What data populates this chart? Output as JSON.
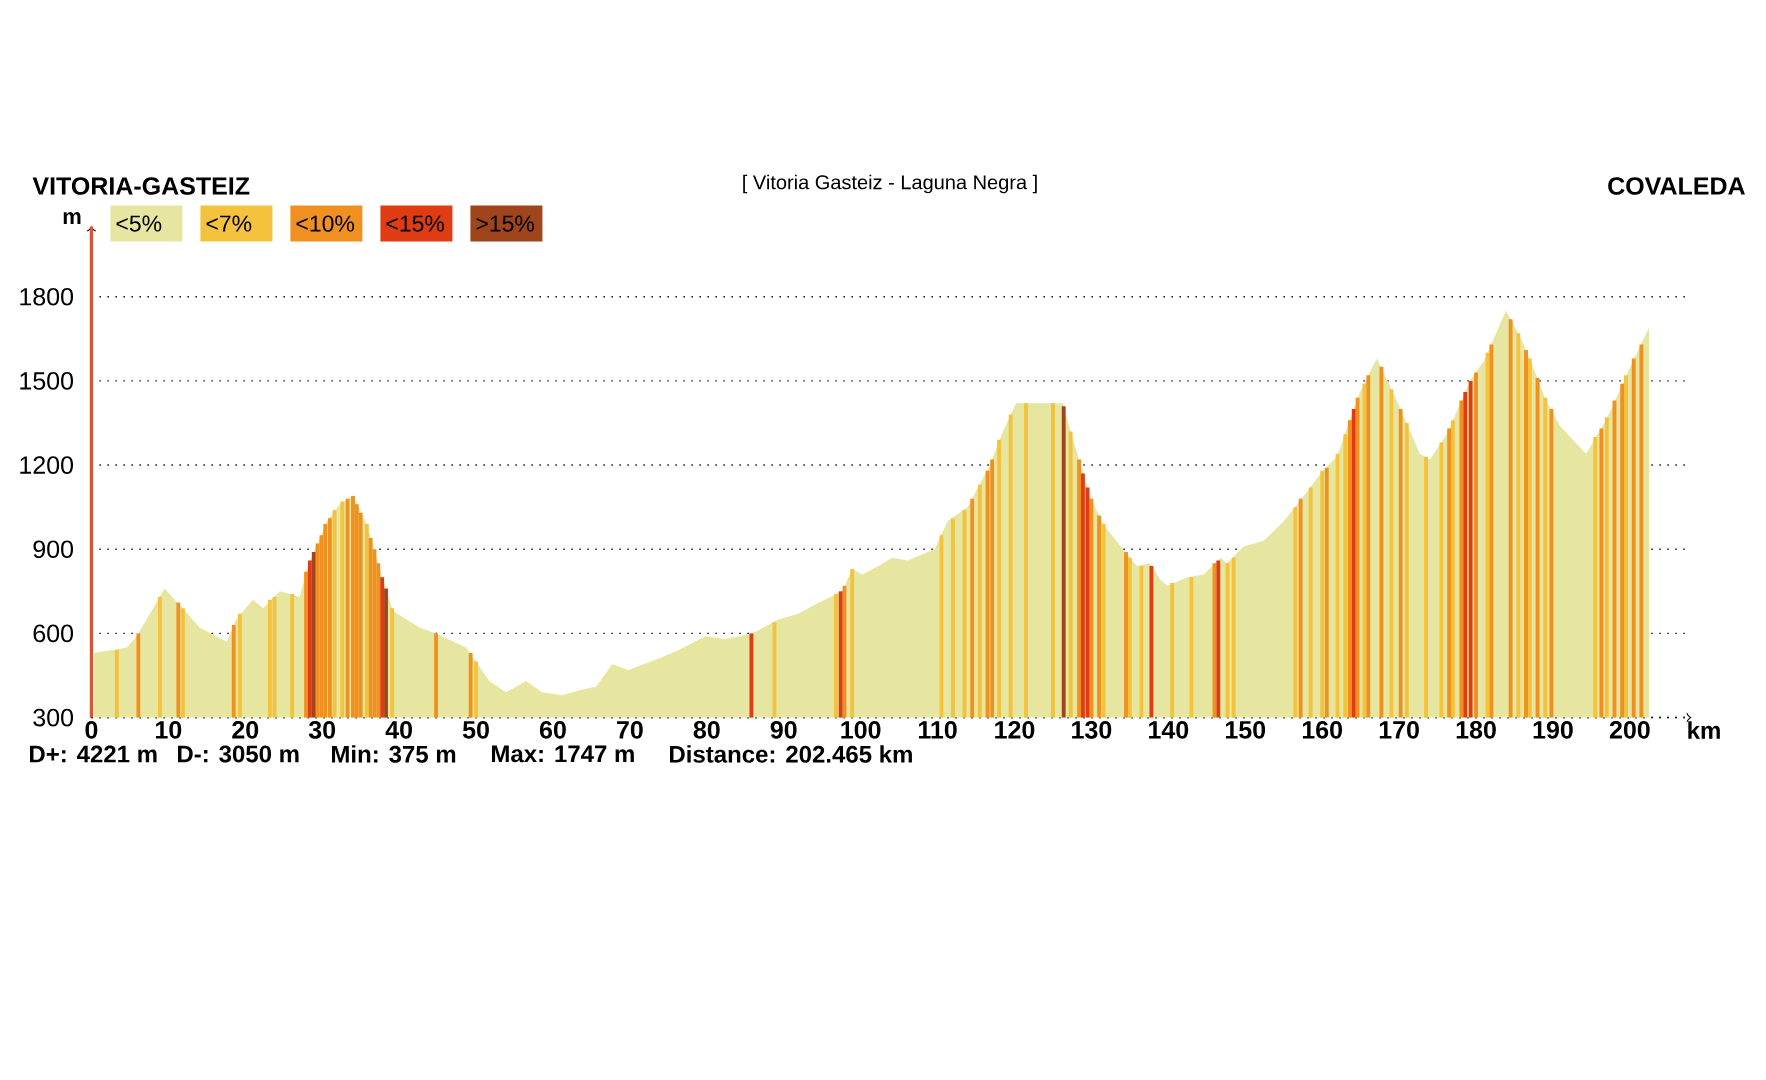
{
  "chart_data": {
    "type": "area",
    "title": "[ Vitoria Gasteiz - Laguna Negra ]",
    "xlabel": "km",
    "ylabel": "m",
    "xlim": [
      0,
      208
    ],
    "ylim": [
      300,
      2050
    ],
    "xticks": [
      0,
      10,
      20,
      30,
      40,
      50,
      60,
      70,
      80,
      90,
      100,
      110,
      120,
      130,
      140,
      150,
      160,
      170,
      180,
      190,
      200
    ],
    "yticks": [
      300,
      600,
      900,
      1200,
      1500,
      1800
    ],
    "grid": "y",
    "legend": "top left",
    "series": [
      {
        "name": "<5%",
        "color": "#e6e6a0",
        "x": [
          0.3,
          4.6,
          5.9,
          9.5,
          11.5,
          14.1,
          17.6,
          18.8,
          21.0,
          22.3,
          24.5,
          27.1,
          28.0,
          30.6,
          32.3,
          34.0,
          35.8,
          37.5,
          39.2,
          42.7,
          44.8,
          48.7,
          50.0,
          51.7,
          53.9,
          56.5,
          58.6,
          61.2,
          63.8,
          65.6,
          67.7,
          69.8,
          73.7,
          76.3,
          79.8,
          82.4,
          85.9,
          89.3,
          91.9,
          94.6,
          97.6,
          98.9,
          100.2,
          102.3,
          104.1,
          106.1,
          109.6,
          111.3,
          113.9,
          116.8,
          118.5,
          120.2,
          126.3,
          127.2,
          128.5,
          129.8,
          131.5,
          134.1,
          135.9,
          137.6,
          139.0,
          139.9,
          142.5,
          144.6,
          146.8,
          147.6,
          149.8,
          152.4,
          155.0,
          157.6,
          159.8,
          161.9,
          164.9,
          167.1,
          169.7,
          172.7,
          174.0,
          176.2,
          179.2,
          181.0,
          183.9,
          185.7,
          187.4,
          189.1,
          190.9,
          194.3,
          196.9,
          200.4,
          202.5
        ],
        "values": [
          530,
          550,
          590,
          760,
          700,
          620,
          570,
          650,
          720,
          690,
          750,
          730,
          830,
          1000,
          1060,
          1090,
          990,
          830,
          680,
          620,
          600,
          550,
          500,
          430,
          390,
          430,
          390,
          380,
          400,
          410,
          490,
          470,
          510,
          540,
          590,
          580,
          600,
          650,
          670,
          710,
          750,
          830,
          810,
          840,
          870,
          860,
          900,
          1000,
          1050,
          1200,
          1320,
          1420,
          1420,
          1330,
          1210,
          1090,
          990,
          900,
          840,
          850,
          790,
          770,
          800,
          810,
          870,
          850,
          910,
          930,
          1000,
          1090,
          1170,
          1230,
          1460,
          1580,
          1430,
          1240,
          1220,
          1310,
          1500,
          1570,
          1750,
          1660,
          1550,
          1430,
          1340,
          1240,
          1360,
          1570,
          1690
        ]
      },
      {
        "name": "<7%",
        "color": "#f4c23c",
        "type": "bar",
        "x": [
          3.3,
          8.9,
          11.9,
          19.3,
          23.2,
          23.8,
          26.1,
          31.6,
          32.6,
          35.8,
          39.1,
          50.0,
          88.8,
          96.8,
          98.9,
          110.5,
          112.0,
          113.5,
          115.5,
          118.0,
          119.5,
          121.5,
          125.0,
          127.3,
          131.6,
          135.0,
          136.5,
          140.5,
          143.0,
          147.7,
          148.5,
          156.5,
          158.5,
          160.0,
          162.0,
          163.0,
          165.5,
          169.0,
          171.0,
          173.5,
          175.5,
          177.0,
          181.5,
          185.5,
          187.0,
          189.0,
          195.5,
          197.0,
          199.5
        ],
        "values": [
          540,
          730,
          690,
          670,
          720,
          730,
          740,
          1040,
          1070,
          990,
          690,
          500,
          640,
          740,
          830,
          950,
          1010,
          1040,
          1130,
          1290,
          1380,
          1420,
          1420,
          1320,
          990,
          870,
          840,
          780,
          800,
          850,
          870,
          1050,
          1120,
          1180,
          1240,
          1310,
          1490,
          1470,
          1350,
          1230,
          1280,
          1360,
          1600,
          1670,
          1580,
          1440,
          1300,
          1370,
          1520
        ]
      },
      {
        "name": "<10%",
        "color": "#ef9020",
        "type": "bar",
        "x": [
          6.1,
          11.3,
          18.5,
          27.9,
          29.4,
          29.9,
          30.4,
          31.0,
          33.3,
          34.0,
          34.5,
          35.0,
          36.3,
          36.8,
          37.3,
          44.8,
          49.3,
          97.9,
          114.5,
          116.5,
          117.1,
          128.4,
          130.0,
          131.0,
          134.5,
          146.0,
          157.2,
          160.6,
          163.6,
          164.6,
          166.0,
          167.7,
          170.2,
          176.5,
          178.1,
          180.0,
          182.0,
          184.5,
          186.5,
          188.0,
          189.8,
          196.3,
          198.0,
          199.0,
          200.5,
          201.5
        ],
        "values": [
          600,
          710,
          630,
          820,
          920,
          950,
          990,
          1010,
          1080,
          1090,
          1060,
          1030,
          940,
          900,
          850,
          600,
          530,
          770,
          1080,
          1180,
          1220,
          1220,
          1080,
          1020,
          890,
          850,
          1080,
          1190,
          1360,
          1440,
          1520,
          1550,
          1400,
          1330,
          1430,
          1530,
          1630,
          1720,
          1610,
          1510,
          1400,
          1330,
          1430,
          1490,
          1580,
          1630
        ]
      },
      {
        "name": "<15%",
        "color": "#e03c14",
        "type": "bar",
        "x": [
          28.4,
          37.8,
          85.8,
          97.4,
          128.9,
          129.5,
          137.8,
          146.5,
          164.1,
          178.6,
          179.3
        ],
        "values": [
          860,
          800,
          600,
          750,
          1170,
          1120,
          840,
          860,
          1400,
          1460,
          1500
        ]
      },
      {
        "name": ">15%",
        "color": "#a0441c",
        "type": "bar",
        "x": [
          28.9,
          38.3,
          126.4
        ],
        "values": [
          890,
          760,
          1410
        ]
      }
    ],
    "ref_lines": [
      {
        "axis": "x",
        "value": 0,
        "color": "#d9533b"
      }
    ],
    "annotations": [
      "VITORIA-GASTEIZ",
      "COVALEDA",
      "D+: 4221 m",
      "D-: 3050 m",
      "Min: 375 m",
      "Max: 1747 m",
      "Distance: 202.465 km"
    ]
  }
}
